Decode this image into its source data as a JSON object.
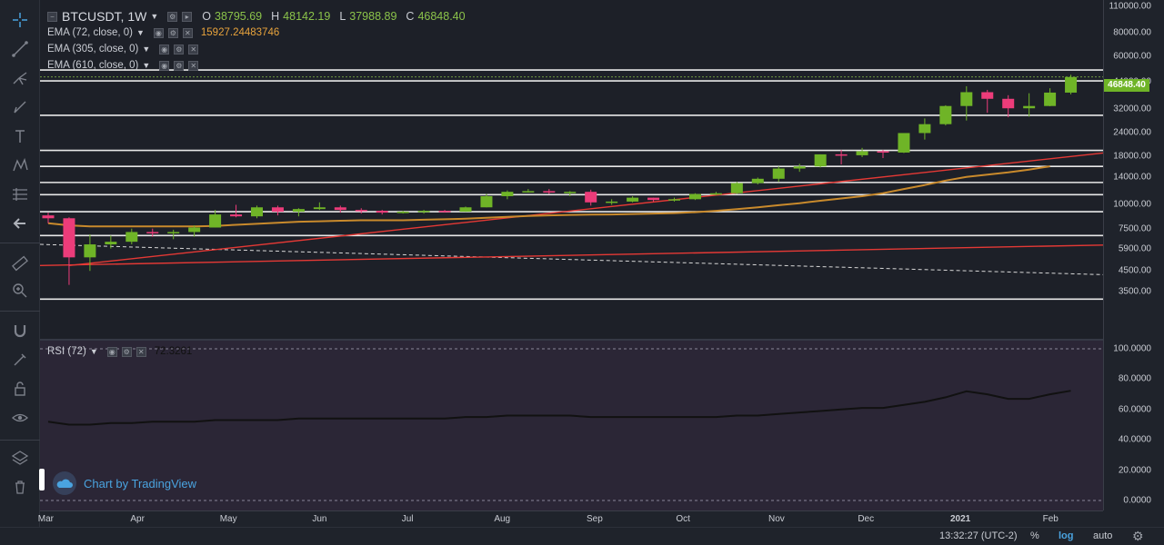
{
  "symbol": {
    "ticker": "BTCUSDT, 1W",
    "open_label": "O",
    "open_value": "38795.69",
    "high_label": "H",
    "high_value": "48142.19",
    "low_label": "L",
    "low_value": "37988.89",
    "close_label": "C",
    "close_value": "46848.40"
  },
  "indicators": [
    {
      "label": "EMA (72, close, 0)",
      "value": "15927.24483746"
    },
    {
      "label": "EMA (305, close, 0)",
      "value": ""
    },
    {
      "label": "EMA (610, close, 0)",
      "value": ""
    }
  ],
  "rsi": {
    "label": "RSI (72)",
    "value": "72.3261"
  },
  "last_price_tag": "46848.40",
  "price_ticks": [
    "110000.00",
    "80000.00",
    "60000.00",
    "44000.00",
    "32000.00",
    "24000.00",
    "18000.00",
    "14000.00",
    "10000.00",
    "7500.00",
    "5900.00",
    "4500.00",
    "3500.00"
  ],
  "rsi_ticks": [
    "100.0000",
    "80.0000",
    "60.0000",
    "40.0000",
    "20.0000",
    "0.0000"
  ],
  "time_ticks": [
    "Mar",
    "Apr",
    "May",
    "Jun",
    "Jul",
    "Aug",
    "Sep",
    "Oct",
    "Nov",
    "Dec",
    "2021",
    "Feb"
  ],
  "watermark": "Chart by TradingView",
  "bottom_bar": {
    "clock": "13:32:27 (UTC-2)",
    "percent": "%",
    "log": "log",
    "auto": "auto"
  },
  "toolbar_icons": [
    "crosshair-icon",
    "trend-line-icon",
    "fork-icon",
    "brush-icon",
    "text-icon",
    "pattern-icon",
    "fib-icon",
    "back-arrow-icon",
    "ruler-icon",
    "zoom-icon",
    "magnet-icon",
    "lock-draw-icon",
    "lock-icon",
    "eye-icon",
    "layers-icon",
    "trash-icon"
  ],
  "colors": {
    "up": "#6fb427",
    "down": "#ec3c7a",
    "ema_orange": "#c98a2c",
    "trend_red": "#e53935",
    "level_white": "#e8e8e8",
    "rsi_line": "#111111",
    "price_tag_bg": "#6fb427",
    "watermark": "#4aa3df"
  },
  "chart_data": {
    "type": "candlestick",
    "timeframe": "1W",
    "scale": "log",
    "x": [
      "2020-03-02",
      "2020-03-09",
      "2020-03-16",
      "2020-03-23",
      "2020-03-30",
      "2020-04-06",
      "2020-04-13",
      "2020-04-20",
      "2020-04-27",
      "2020-05-04",
      "2020-05-11",
      "2020-05-18",
      "2020-05-25",
      "2020-06-01",
      "2020-06-08",
      "2020-06-15",
      "2020-06-22",
      "2020-06-29",
      "2020-07-06",
      "2020-07-13",
      "2020-07-20",
      "2020-07-27",
      "2020-08-03",
      "2020-08-10",
      "2020-08-17",
      "2020-08-24",
      "2020-08-31",
      "2020-09-07",
      "2020-09-14",
      "2020-09-21",
      "2020-09-28",
      "2020-10-05",
      "2020-10-12",
      "2020-10-19",
      "2020-10-26",
      "2020-11-02",
      "2020-11-09",
      "2020-11-16",
      "2020-11-23",
      "2020-11-30",
      "2020-12-07",
      "2020-12-14",
      "2020-12-21",
      "2020-12-28",
      "2021-01-04",
      "2021-01-11",
      "2021-01-18",
      "2021-01-25",
      "2021-02-01",
      "2021-02-08"
    ],
    "ohlc": [
      [
        8800,
        9100,
        8000,
        8500
      ],
      [
        8500,
        8600,
        3800,
        5300
      ],
      [
        5300,
        7000,
        4500,
        6200
      ],
      [
        6200,
        6900,
        5900,
        6400
      ],
      [
        6400,
        7500,
        6200,
        7200
      ],
      [
        7200,
        7500,
        6800,
        7100
      ],
      [
        7100,
        7400,
        6600,
        7200
      ],
      [
        7200,
        7800,
        6800,
        7600
      ],
      [
        7600,
        9400,
        7600,
        8900
      ],
      [
        8900,
        10000,
        8600,
        8700
      ],
      [
        8700,
        9900,
        8500,
        9700
      ],
      [
        9700,
        9900,
        8800,
        9200
      ],
      [
        9200,
        9600,
        8700,
        9500
      ],
      [
        9500,
        10300,
        9400,
        9700
      ],
      [
        9700,
        9900,
        9100,
        9400
      ],
      [
        9400,
        9600,
        9000,
        9300
      ],
      [
        9300,
        9400,
        8900,
        9100
      ],
      [
        9100,
        9300,
        9000,
        9200
      ],
      [
        9200,
        9400,
        9000,
        9300
      ],
      [
        9300,
        9400,
        9100,
        9200
      ],
      [
        9200,
        9800,
        9200,
        9700
      ],
      [
        9700,
        11400,
        9700,
        11100
      ],
      [
        11100,
        11900,
        10700,
        11700
      ],
      [
        11700,
        12100,
        11600,
        11800
      ],
      [
        11800,
        12100,
        11400,
        11600
      ],
      [
        11600,
        11800,
        11100,
        11700
      ],
      [
        11700,
        12000,
        9900,
        10300
      ],
      [
        10300,
        10700,
        10000,
        10400
      ],
      [
        10400,
        11100,
        10300,
        10900
      ],
      [
        10900,
        10900,
        10400,
        10600
      ],
      [
        10600,
        10900,
        10400,
        10700
      ],
      [
        10700,
        11500,
        10600,
        11400
      ],
      [
        11400,
        11700,
        11200,
        11500
      ],
      [
        11500,
        13200,
        11400,
        13000
      ],
      [
        13000,
        13900,
        12800,
        13700
      ],
      [
        13700,
        15900,
        13200,
        15500
      ],
      [
        15500,
        16400,
        14900,
        15900
      ],
      [
        15900,
        18400,
        15700,
        18400
      ],
      [
        18400,
        19400,
        16300,
        18200
      ],
      [
        18200,
        19900,
        17800,
        19100
      ],
      [
        19100,
        19400,
        17600,
        18800
      ],
      [
        18800,
        23800,
        18700,
        23800
      ],
      [
        23800,
        28400,
        22000,
        26500
      ],
      [
        26500,
        33300,
        26100,
        33000
      ],
      [
        33000,
        41900,
        27700,
        39000
      ],
      [
        39000,
        40100,
        30400,
        36000
      ],
      [
        36000,
        37600,
        28800,
        32100
      ],
      [
        32100,
        38500,
        29000,
        33000
      ],
      [
        33000,
        40900,
        32900,
        38800
      ],
      [
        38795.69,
        48142.19,
        37988.89,
        46848.4
      ]
    ],
    "ema_72_current": 15927.24483746,
    "rsi_72": [
      52,
      50,
      50,
      51,
      51,
      52,
      52,
      52,
      53,
      53,
      53,
      53,
      54,
      54,
      54,
      54,
      54,
      54,
      54,
      54,
      55,
      55,
      56,
      56,
      56,
      56,
      55,
      55,
      55,
      55,
      55,
      55,
      55,
      56,
      56,
      57,
      58,
      59,
      60,
      61,
      61,
      63,
      65,
      68,
      72,
      70,
      67,
      67,
      70,
      72.3261
    ],
    "rsi_range": [
      0,
      100
    ]
  }
}
